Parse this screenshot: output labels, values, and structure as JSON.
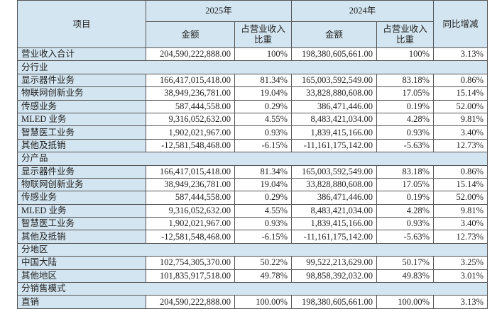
{
  "table": {
    "header": {
      "item": "项目",
      "years": [
        "2025年",
        "2024年"
      ],
      "yoy": "同比增减",
      "columns": [
        "金额",
        "占营业收入比重",
        "金额",
        "占营业收入比重"
      ]
    },
    "rows": [
      [
        "营业收入合计",
        "204,590,222,888.00",
        "100%",
        "198,380,605,661.00",
        "100%",
        "3.13%"
      ],
      [
        "分行业"
      ],
      [
        "显示器件业务",
        "166,417,015,418.00",
        "81.34%",
        "165,003,592,549.00",
        "83.18%",
        "0.86%"
      ],
      [
        "物联网创新业务",
        "38,949,236,781.00",
        "19.04%",
        "33,828,880,608.00",
        "17.05%",
        "15.14%"
      ],
      [
        "传感业务",
        "587,444,558.00",
        "0.29%",
        "386,471,446.00",
        "0.19%",
        "52.00%"
      ],
      [
        "MLED 业务",
        "9,316,052,632.00",
        "4.55%",
        "8,483,421,034.00",
        "4.28%",
        "9.81%"
      ],
      [
        "智慧医工业务",
        "1,902,021,967.00",
        "0.93%",
        "1,839,415,166.00",
        "0.93%",
        "3.40%"
      ],
      [
        "其他及抵销",
        "-12,581,548,468.00",
        "-6.15%",
        "-11,161,175,142.00",
        "-5.63%",
        "12.73%"
      ],
      [
        "分产品"
      ],
      [
        "显示器件业务",
        "166,417,015,418.00",
        "81.34%",
        "165,003,592,549.00",
        "83.18%",
        "0.86%"
      ],
      [
        "物联网创新业务",
        "38,949,236,781.00",
        "19.04%",
        "33,828,880,608.00",
        "17.05%",
        "15.14%"
      ],
      [
        "传感业务",
        "587,444,558.00",
        "0.29%",
        "386,471,446.00",
        "0.19%",
        "52.00%"
      ],
      [
        "MLED 业务",
        "9,316,052,632.00",
        "4.55%",
        "8,483,421,034.00",
        "4.28%",
        "9.81%"
      ],
      [
        "智慧医工业务",
        "1,902,021,967.00",
        "0.93%",
        "1,839,415,166.00",
        "0.93%",
        "3.40%"
      ],
      [
        "其他及抵销",
        "-12,581,548,468.00",
        "-6.15%",
        "-11,161,175,142.00",
        "-5.63%",
        "12.73%"
      ],
      [
        "分地区"
      ],
      [
        "中国大陆",
        "102,754,305,370.00",
        "50.22%",
        "99,522,213,629.00",
        "50.17%",
        "3.25%"
      ],
      [
        "其他地区",
        "101,835,917,518.00",
        "49.78%",
        "98,858,392,032.00",
        "49.83%",
        "3.01%"
      ],
      [
        "分销售模式"
      ],
      [
        "直销",
        "204,590,222,888.00",
        "100.00%",
        "198,380,605,661.00",
        "100.00%",
        "3.13%"
      ]
    ]
  }
}
